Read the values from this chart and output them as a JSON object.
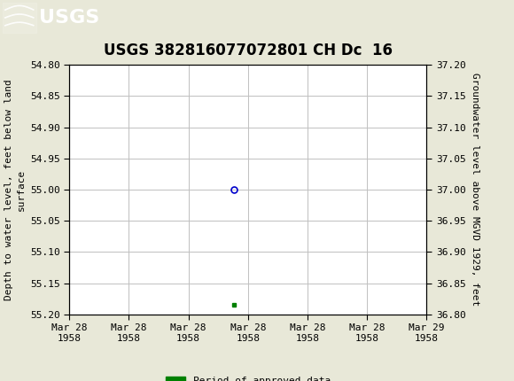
{
  "title": "USGS 382816077072801 CH Dc  16",
  "ylabel_left": "Depth to water level, feet below land\nsurface",
  "ylabel_right": "Groundwater level above MGVD 1929, feet",
  "ylim_left": [
    55.2,
    54.8
  ],
  "ylim_right": [
    36.8,
    37.2
  ],
  "yticks_left": [
    54.8,
    54.85,
    54.9,
    54.95,
    55.0,
    55.05,
    55.1,
    55.15,
    55.2
  ],
  "yticks_right": [
    36.8,
    36.85,
    36.9,
    36.95,
    37.0,
    37.05,
    37.1,
    37.15,
    37.2
  ],
  "data_point_x_num": 0.0,
  "data_point_y": 55.0,
  "data_point_color": "#0000cc",
  "approved_x_num": 0.0,
  "approved_y": 55.185,
  "approved_color": "#008000",
  "header_bg_color": "#006633",
  "background_color": "#e8e8d8",
  "plot_bg_color": "#ffffff",
  "grid_color": "#c0c0c0",
  "title_fontsize": 12,
  "axis_label_fontsize": 8,
  "tick_fontsize": 8,
  "legend_label": "Period of approved data",
  "xtick_labels": [
    "Mar 28\n1958",
    "Mar 28\n1958",
    "Mar 28\n1958",
    "Mar 28\n1958",
    "Mar 28\n1958",
    "Mar 28\n1958",
    "Mar 29\n1958"
  ],
  "num_xticks": 7,
  "x_min": -3.0,
  "x_max": 3.5,
  "x_center": 0.0
}
